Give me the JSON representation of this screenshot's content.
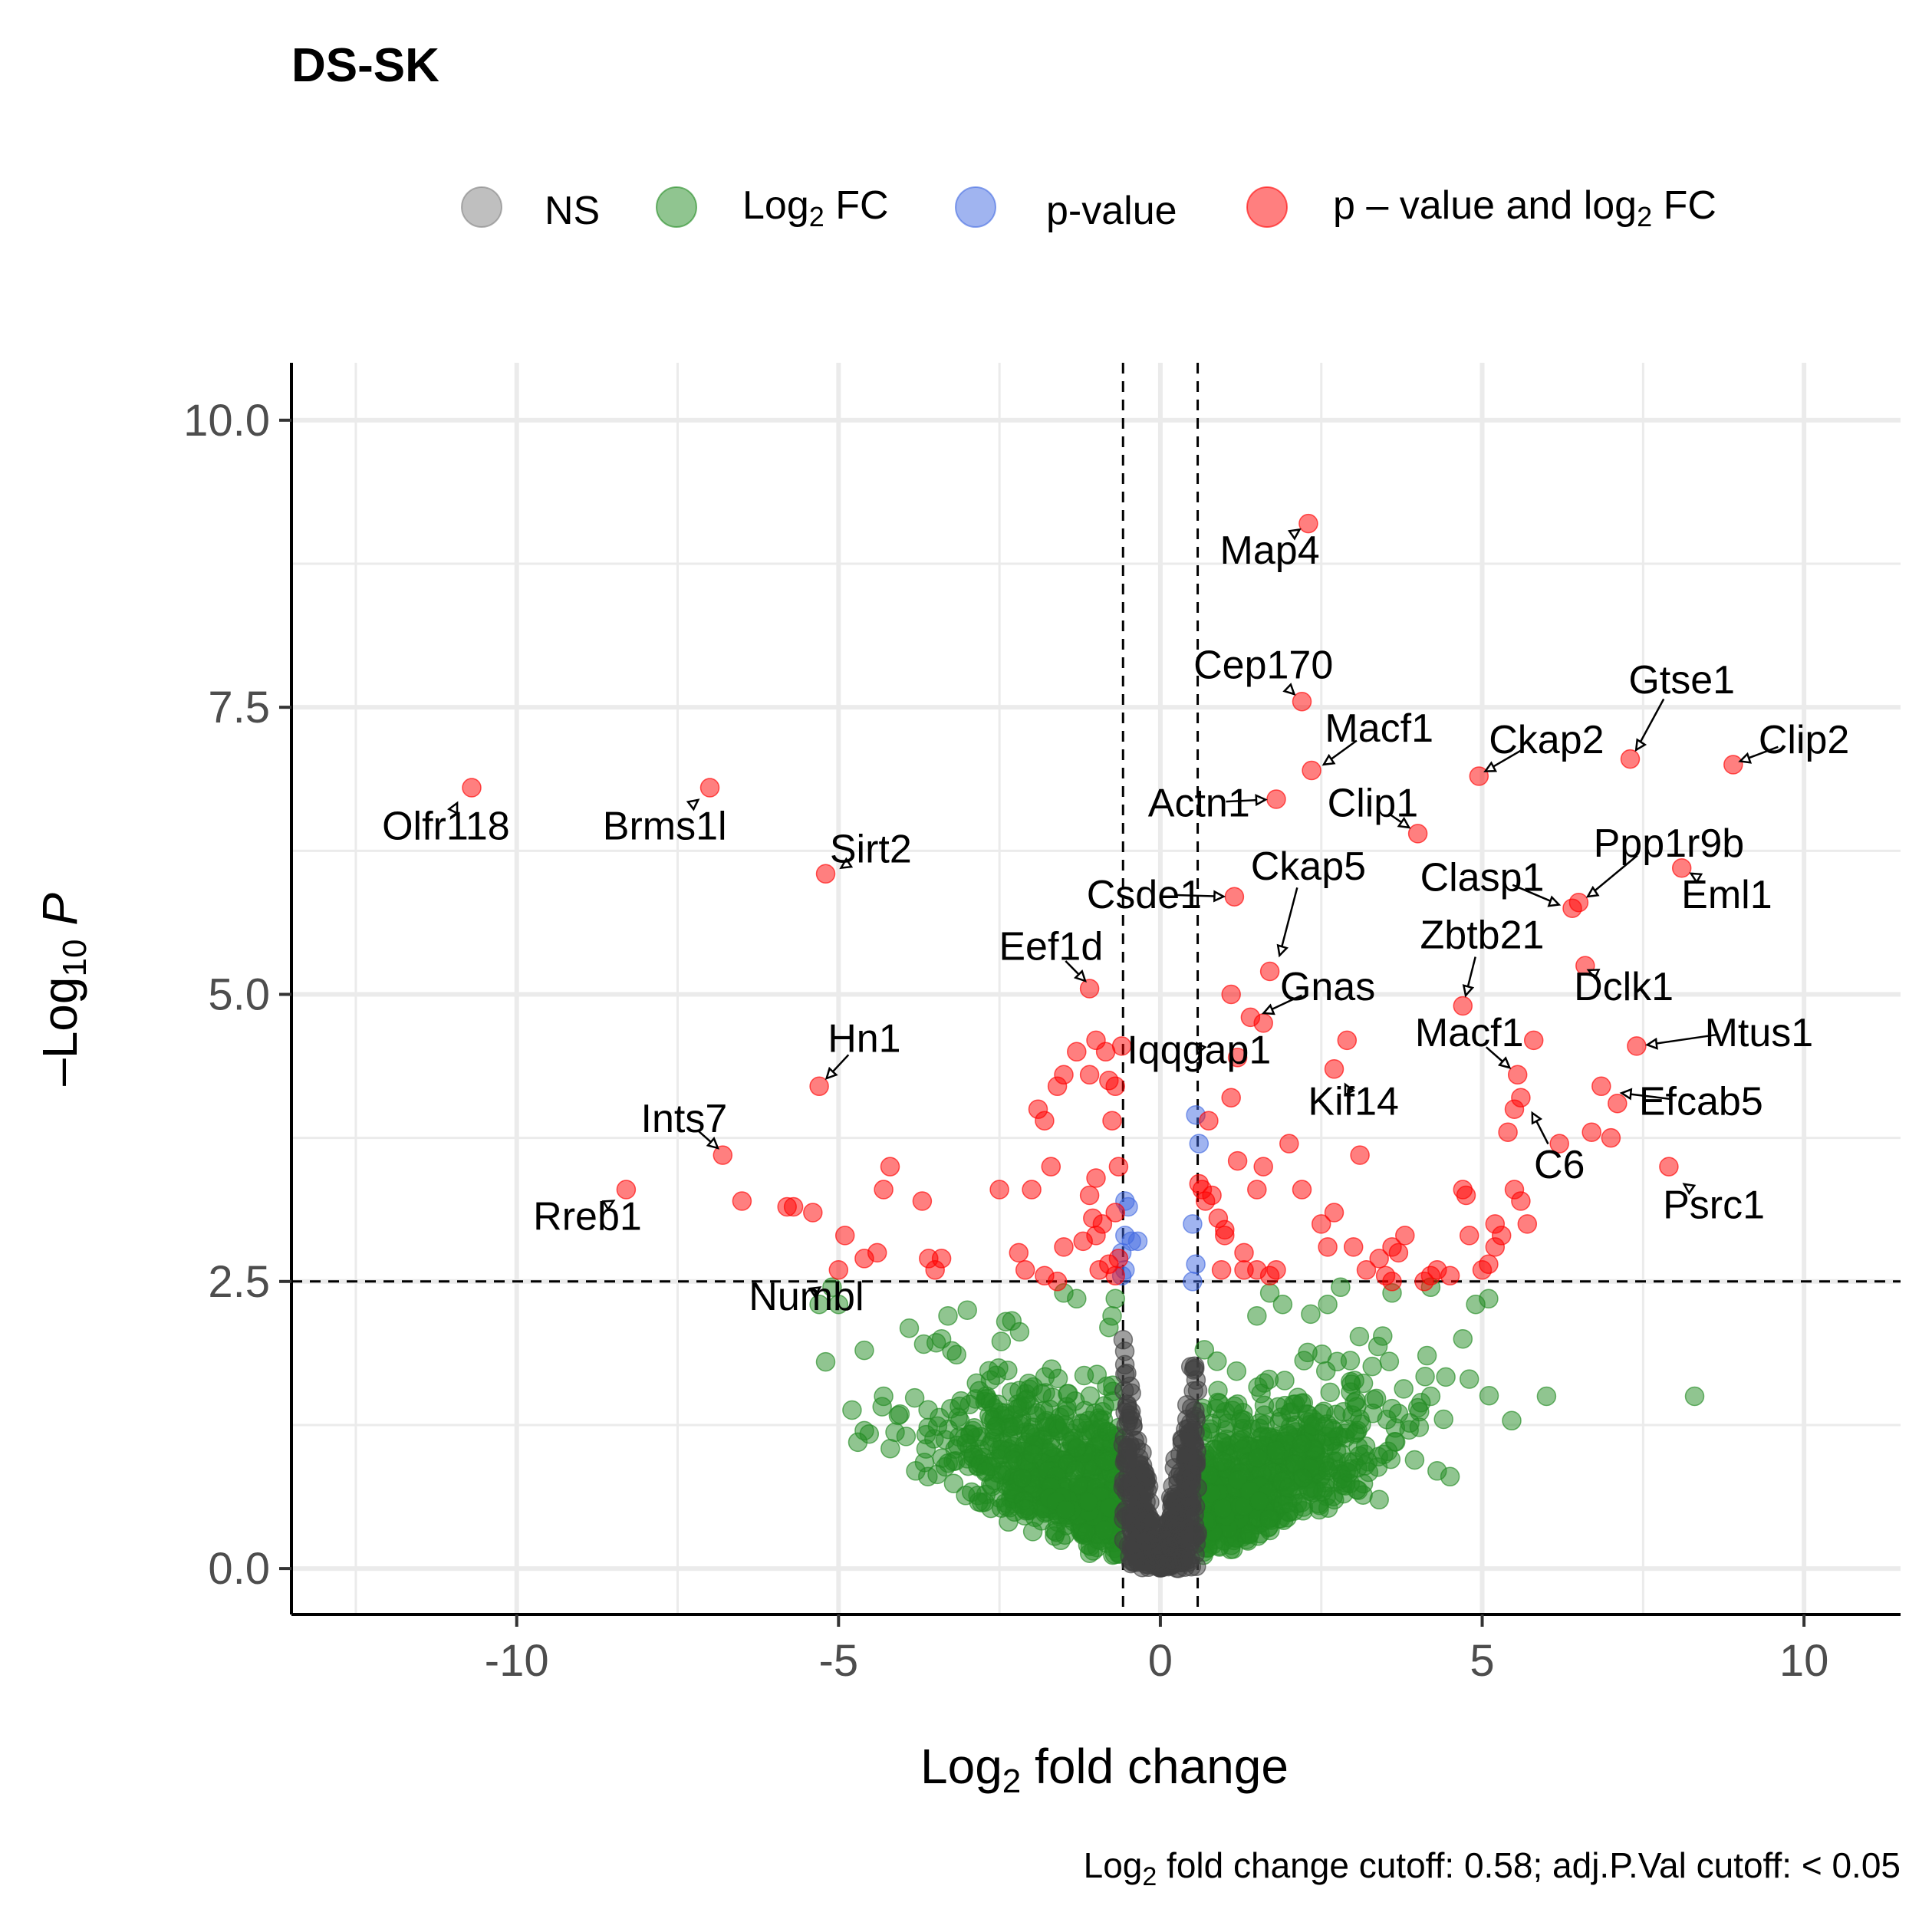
{
  "chart_data": {
    "type": "scatter",
    "title": "DS-SK",
    "xlabel": "Log",
    "xlabel_sub": "2",
    "xlabel_rest": " fold change",
    "ylabel": "–Log",
    "ylabel_sub": "10",
    "ylabel_rest": " P",
    "caption": "Log",
    "caption_sub": "2",
    "caption_rest": " fold change cutoff: 0.58; adj.P.Val cutoff: < 0.05",
    "xlim": [
      -13.5,
      11.5
    ],
    "ylim": [
      -0.4,
      10.5
    ],
    "x_ticks": [
      -10,
      -5,
      0,
      5,
      10
    ],
    "x_tick_labels": [
      "-10",
      "-5",
      "0",
      "5",
      "10"
    ],
    "y_ticks": [
      0,
      2.5,
      5,
      7.5,
      10
    ],
    "y_tick_labels": [
      "0.0",
      "2.5",
      "5.0",
      "7.5",
      "10.0"
    ],
    "cutoffs": {
      "fc": 0.58,
      "p": 2.5
    },
    "grid": true,
    "legend_position": "top",
    "legend": [
      {
        "key": "ns",
        "label": "NS",
        "label_sub": "",
        "label_rest": "",
        "color": "#808080"
      },
      {
        "key": "fc",
        "label": "Log",
        "label_sub": "2",
        "label_rest": " FC",
        "color": "#228B22"
      },
      {
        "key": "p",
        "label": "p-value",
        "label_sub": "",
        "label_rest": "",
        "color": "#4169E1"
      },
      {
        "key": "both",
        "label": "p – value and log",
        "label_sub": "2",
        "label_rest": " FC",
        "color": "#FF0000"
      }
    ],
    "colors": {
      "ns": "#404040",
      "fc": "#228B22",
      "p": "#4169E1",
      "both": "#FF0000"
    },
    "labeled_genes": [
      {
        "gene": "Map4",
        "x": 2.3,
        "y": 9.1,
        "lx": 1.7,
        "ly": 8.75
      },
      {
        "gene": "Cep170",
        "x": 2.2,
        "y": 7.55,
        "lx": 1.6,
        "ly": 7.75
      },
      {
        "gene": "Macf1",
        "x": 2.4,
        "y": 6.95,
        "lx": 3.4,
        "ly": 7.2
      },
      {
        "gene": "Ckap2",
        "x": 4.9,
        "y": 6.9,
        "lx": 6.0,
        "ly": 7.1
      },
      {
        "gene": "Gtse1",
        "x": 7.3,
        "y": 7.05,
        "lx": 8.1,
        "ly": 7.62
      },
      {
        "gene": "Clip2",
        "x": 8.85,
        "y": 7.0,
        "lx": 10.0,
        "ly": 7.1
      },
      {
        "gene": "Olfr118",
        "x": -10.85,
        "y": 6.75,
        "lx": -11.1,
        "ly": 6.35
      },
      {
        "gene": "Brms1l",
        "x": -7.05,
        "y": 6.75,
        "lx": -7.7,
        "ly": 6.35
      },
      {
        "gene": "Actn1",
        "x": 1.8,
        "y": 6.7,
        "lx": 0.6,
        "ly": 6.55
      },
      {
        "gene": "Clip1",
        "x": 4.0,
        "y": 6.4,
        "lx": 3.3,
        "ly": 6.55
      },
      {
        "gene": "Ppp1r9b",
        "x": 6.5,
        "y": 5.8,
        "lx": 7.9,
        "ly": 6.2
      },
      {
        "gene": "Sirt2",
        "x": -5.1,
        "y": 6.05,
        "lx": -4.5,
        "ly": 6.15
      },
      {
        "gene": "Eml1",
        "x": 8.1,
        "y": 6.1,
        "lx": 8.8,
        "ly": 5.75
      },
      {
        "gene": "Clasp1",
        "x": 6.35,
        "y": 5.75,
        "lx": 5.0,
        "ly": 5.9
      },
      {
        "gene": "Ckap5",
        "x": 1.8,
        "y": 5.25,
        "lx": 2.3,
        "ly": 6.0
      },
      {
        "gene": "Csde1",
        "x": 1.15,
        "y": 5.85,
        "lx": -0.25,
        "ly": 5.75
      },
      {
        "gene": "Zbtb21",
        "x": 4.7,
        "y": 4.9,
        "lx": 5.0,
        "ly": 5.4
      },
      {
        "gene": "Eef1d",
        "x": -1.05,
        "y": 5.05,
        "lx": -1.7,
        "ly": 5.3
      },
      {
        "gene": "Gnas",
        "x": 1.45,
        "y": 4.8,
        "lx": 2.6,
        "ly": 4.95
      },
      {
        "gene": "Dclk1",
        "x": 6.5,
        "y": 5.25,
        "lx": 7.2,
        "ly": 4.95
      },
      {
        "gene": "Mtus1",
        "x": 7.4,
        "y": 4.55,
        "lx": 9.3,
        "ly": 4.55
      },
      {
        "gene": "Macf1",
        "x": 5.55,
        "y": 4.3,
        "lx": 4.8,
        "ly": 4.55
      },
      {
        "gene": "Hn1",
        "x": -5.3,
        "y": 4.2,
        "lx": -4.6,
        "ly": 4.5
      },
      {
        "gene": "Iqqgap1",
        "x": 0.5,
        "y": 4.4,
        "lx": 0.6,
        "ly": 4.4
      },
      {
        "gene": "Kif14",
        "x": 2.8,
        "y": 4.3,
        "lx": 3.0,
        "ly": 3.95
      },
      {
        "gene": "Efcab5",
        "x": 7.0,
        "y": 4.15,
        "lx": 8.4,
        "ly": 3.95
      },
      {
        "gene": "Ints7",
        "x": -6.75,
        "y": 3.6,
        "lx": -7.4,
        "ly": 3.8
      },
      {
        "gene": "C6",
        "x": 5.7,
        "y": 4.05,
        "lx": 6.2,
        "ly": 3.4
      },
      {
        "gene": "Psrc1",
        "x": 8.0,
        "y": 3.4,
        "lx": 8.6,
        "ly": 3.05
      },
      {
        "gene": "Rreb1",
        "x": -8.35,
        "y": 3.25,
        "lx": -8.9,
        "ly": 2.95
      },
      {
        "gene": "Numbl",
        "x": -5.15,
        "y": 2.5,
        "lx": -5.5,
        "ly": 2.25
      }
    ],
    "red_points": [
      [
        -10.7,
        6.8
      ],
      [
        -7.0,
        6.8
      ],
      [
        -5.2,
        6.05
      ],
      [
        -5.3,
        4.2
      ],
      [
        -6.8,
        3.6
      ],
      [
        -8.3,
        3.3
      ],
      [
        -1.1,
        5.05
      ],
      [
        -6.5,
        3.2
      ],
      [
        -5.8,
        3.15
      ],
      [
        -5.7,
        3.15
      ],
      [
        -5.4,
        3.1
      ],
      [
        -4.2,
        3.5
      ],
      [
        -4.3,
        3.3
      ],
      [
        -4.9,
        2.9
      ],
      [
        -4.6,
        2.7
      ],
      [
        -4.4,
        2.75
      ],
      [
        -3.6,
        2.7
      ],
      [
        -3.4,
        2.7
      ],
      [
        -3.5,
        2.6
      ],
      [
        -3.7,
        3.2
      ],
      [
        -5.0,
        2.6
      ],
      [
        -2.5,
        3.3
      ],
      [
        -2.2,
        2.75
      ],
      [
        -2.0,
        3.3
      ],
      [
        -2.1,
        2.6
      ],
      [
        -1.8,
        2.55
      ],
      [
        -1.6,
        2.5
      ],
      [
        -1.7,
        3.5
      ],
      [
        -1.9,
        4.0
      ],
      [
        -1.8,
        3.9
      ],
      [
        -1.6,
        4.2
      ],
      [
        -1.5,
        4.3
      ],
      [
        -1.3,
        4.5
      ],
      [
        -1.0,
        4.6
      ],
      [
        -1.1,
        4.3
      ],
      [
        -0.85,
        4.5
      ],
      [
        -0.8,
        4.25
      ],
      [
        -0.7,
        4.2
      ],
      [
        -0.6,
        4.55
      ],
      [
        -0.75,
        3.9
      ],
      [
        -1.1,
        3.25
      ],
      [
        -1.05,
        3.05
      ],
      [
        -0.9,
        3.0
      ],
      [
        -1.0,
        3.4
      ],
      [
        -0.65,
        3.5
      ],
      [
        -0.7,
        3.1
      ],
      [
        -1.2,
        2.85
      ],
      [
        -1.5,
        2.8
      ],
      [
        -0.95,
        2.6
      ],
      [
        -0.8,
        2.65
      ],
      [
        -0.65,
        2.7
      ],
      [
        -1.0,
        2.9
      ],
      [
        -0.7,
        2.55
      ],
      [
        0.6,
        3.35
      ],
      [
        0.65,
        3.3
      ],
      [
        0.7,
        3.2
      ],
      [
        0.8,
        3.25
      ],
      [
        0.9,
        3.05
      ],
      [
        1.0,
        2.95
      ],
      [
        0.75,
        3.9
      ],
      [
        1.1,
        4.1
      ],
      [
        1.2,
        4.45
      ],
      [
        1.1,
        5.0
      ],
      [
        1.4,
        4.8
      ],
      [
        1.7,
        5.2
      ],
      [
        1.6,
        4.75
      ],
      [
        1.15,
        5.85
      ],
      [
        1.8,
        6.7
      ],
      [
        2.35,
        6.95
      ],
      [
        2.2,
        7.55
      ],
      [
        2.3,
        9.1
      ],
      [
        0.95,
        2.6
      ],
      [
        1.0,
        2.9
      ],
      [
        1.3,
        2.75
      ],
      [
        1.3,
        2.6
      ],
      [
        1.5,
        2.6
      ],
      [
        1.8,
        2.6
      ],
      [
        1.7,
        2.55
      ],
      [
        1.6,
        3.5
      ],
      [
        1.5,
        3.3
      ],
      [
        1.2,
        3.55
      ],
      [
        2.0,
        3.7
      ],
      [
        2.2,
        3.3
      ],
      [
        2.5,
        3.0
      ],
      [
        2.6,
        2.8
      ],
      [
        2.7,
        3.1
      ],
      [
        2.9,
        4.6
      ],
      [
        2.7,
        4.35
      ],
      [
        3.1,
        3.6
      ],
      [
        3.0,
        2.8
      ],
      [
        3.2,
        2.6
      ],
      [
        3.4,
        2.7
      ],
      [
        3.5,
        2.55
      ],
      [
        3.6,
        2.8
      ],
      [
        3.7,
        2.75
      ],
      [
        3.8,
        2.9
      ],
      [
        3.6,
        2.5
      ],
      [
        4.0,
        6.4
      ],
      [
        4.1,
        2.5
      ],
      [
        4.2,
        2.55
      ],
      [
        4.3,
        2.6
      ],
      [
        4.5,
        2.55
      ],
      [
        4.7,
        3.3
      ],
      [
        4.75,
        3.25
      ],
      [
        4.7,
        4.9
      ],
      [
        4.95,
        6.9
      ],
      [
        4.8,
        2.9
      ],
      [
        5.0,
        2.6
      ],
      [
        5.1,
        2.65
      ],
      [
        5.2,
        3.0
      ],
      [
        5.2,
        2.8
      ],
      [
        5.3,
        2.9
      ],
      [
        5.4,
        3.8
      ],
      [
        5.5,
        4.0
      ],
      [
        5.55,
        4.3
      ],
      [
        5.6,
        4.1
      ],
      [
        5.5,
        3.3
      ],
      [
        5.6,
        3.2
      ],
      [
        5.7,
        3.0
      ],
      [
        5.8,
        4.6
      ],
      [
        6.2,
        3.7
      ],
      [
        6.4,
        5.75
      ],
      [
        6.5,
        5.8
      ],
      [
        6.6,
        5.25
      ],
      [
        6.85,
        4.2
      ],
      [
        7.0,
        3.75
      ],
      [
        6.7,
        3.8
      ],
      [
        7.4,
        4.55
      ],
      [
        7.3,
        7.05
      ],
      [
        8.1,
        6.1
      ],
      [
        8.9,
        7.0
      ],
      [
        7.9,
        3.5
      ],
      [
        7.1,
        4.05
      ]
    ],
    "blue_points": [
      [
        -0.55,
        3.2
      ],
      [
        -0.5,
        3.15
      ],
      [
        -0.55,
        2.9
      ],
      [
        -0.45,
        2.85
      ],
      [
        -0.35,
        2.85
      ],
      [
        -0.6,
        2.75
      ],
      [
        -0.55,
        2.6
      ],
      [
        -0.6,
        2.55
      ],
      [
        0.55,
        3.95
      ],
      [
        0.6,
        3.7
      ],
      [
        0.5,
        3.0
      ],
      [
        0.5,
        2.5
      ],
      [
        0.55,
        2.65
      ]
    ],
    "fc_cluster_seed": 20240101,
    "fc_cluster_count": 1400,
    "ns_cluster_count": 500,
    "extra_green_points": [
      [
        -5.1,
        2.45
      ],
      [
        -5.3,
        2.3
      ],
      [
        -5.0,
        2.3
      ],
      [
        -5.2,
        1.8
      ],
      [
        -4.6,
        1.9
      ],
      [
        -4.3,
        1.5
      ],
      [
        -4.6,
        1.2
      ],
      [
        -4.7,
        1.1
      ],
      [
        -3.8,
        0.85
      ],
      [
        -3.3,
        2.2
      ],
      [
        -3.4,
        2.0
      ],
      [
        -3.0,
        2.25
      ],
      [
        -2.4,
        2.15
      ],
      [
        -1.5,
        2.4
      ],
      [
        -1.3,
        2.35
      ],
      [
        -0.7,
        2.35
      ],
      [
        -0.75,
        2.2
      ],
      [
        -0.8,
        2.1
      ],
      [
        6.0,
        1.5
      ],
      [
        8.3,
        1.5
      ],
      [
        4.8,
        1.65
      ],
      [
        4.7,
        2.0
      ],
      [
        4.9,
        2.3
      ],
      [
        5.1,
        2.35
      ],
      [
        4.2,
        2.45
      ],
      [
        3.6,
        2.4
      ],
      [
        2.8,
        2.45
      ],
      [
        2.6,
        2.3
      ],
      [
        1.7,
        2.4
      ],
      [
        1.9,
        2.3
      ],
      [
        1.5,
        2.2
      ],
      [
        4.3,
        0.85
      ],
      [
        4.5,
        0.8
      ],
      [
        3.4,
        0.6
      ],
      [
        3.1,
        1.3
      ],
      [
        3.7,
        1.35
      ],
      [
        4.0,
        1.4
      ],
      [
        4.2,
        1.5
      ],
      [
        4.4,
        1.3
      ]
    ]
  }
}
